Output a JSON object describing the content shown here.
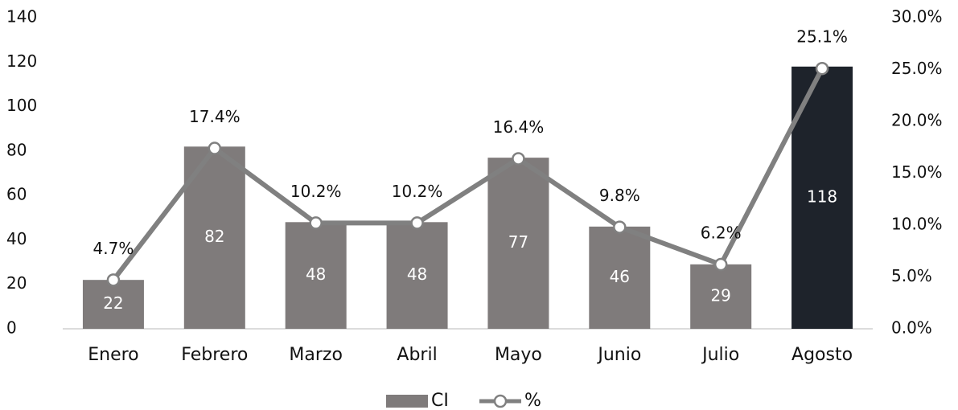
{
  "chart_data": {
    "type": "bar-line",
    "categories": [
      "Enero",
      "Febrero",
      "Marzo",
      "Abril",
      "Mayo",
      "Junio",
      "Julio",
      "Agosto"
    ],
    "series": [
      {
        "name": "CI",
        "type": "bar",
        "color": "#7f7b7b",
        "colors": [
          "#7f7b7b",
          "#7f7b7b",
          "#7f7b7b",
          "#7f7b7b",
          "#7f7b7b",
          "#7f7b7b",
          "#7f7b7b",
          "#1e232b"
        ],
        "values": [
          22,
          82,
          48,
          48,
          77,
          46,
          29,
          118
        ]
      },
      {
        "name": "%",
        "type": "line",
        "axis": "y2",
        "color": "#808080",
        "values": [
          4.7,
          17.4,
          10.2,
          10.2,
          16.4,
          9.8,
          6.2,
          25.1
        ],
        "value_labels": [
          "4.7%",
          "17.4%",
          "10.2%",
          "10.2%",
          "16.4%",
          "9.8%",
          "6.2%",
          "25.1%"
        ]
      }
    ],
    "ylim": [
      0,
      140
    ],
    "yticks": [
      0,
      20,
      40,
      60,
      80,
      100,
      120,
      140
    ],
    "y2lim": [
      0,
      30
    ],
    "y2ticks": [
      {
        "value": 0,
        "label": "0.0%"
      },
      {
        "value": 5,
        "label": "5.0%"
      },
      {
        "value": 10,
        "label": "10.0%"
      },
      {
        "value": 15,
        "label": "15.0%"
      },
      {
        "value": 20,
        "label": "20.0%"
      },
      {
        "value": 25,
        "label": "25.0%"
      },
      {
        "value": 30,
        "label": "30.0%"
      }
    ],
    "legend": "bottom"
  }
}
